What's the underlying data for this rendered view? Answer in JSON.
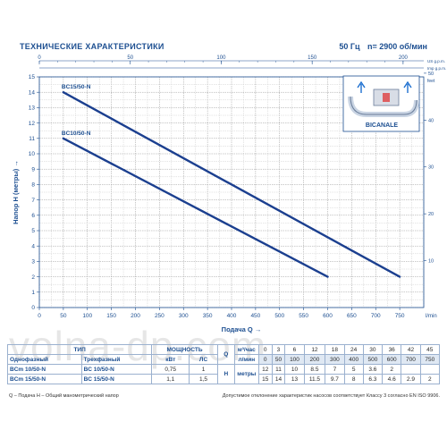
{
  "header": {
    "title": "ТЕХНИЧЕСКИЕ ХАРАКТЕРИСТИКИ",
    "freq": "50 Гц",
    "speed": "n= 2900 об/мин"
  },
  "inset": {
    "label": "BICANALE"
  },
  "watermark": "volna-dp.com",
  "chart_data": {
    "type": "line",
    "xlabel": "Подача Q",
    "xunit": "l/min",
    "ylabel": "Напор H (метры)",
    "yunit_right": "feet",
    "top_axis_unit": "US g.p.m.",
    "top_axis_unit2": "Imp g.p.m.",
    "xlim": [
      0,
      800
    ],
    "ylim": [
      0,
      15
    ],
    "x_ticks": [
      0,
      50,
      100,
      150,
      200,
      250,
      300,
      350,
      400,
      450,
      500,
      550,
      600,
      650,
      700,
      750
    ],
    "y_ticks": [
      0,
      1,
      2,
      3,
      4,
      5,
      6,
      7,
      8,
      9,
      10,
      11,
      12,
      13,
      14,
      15
    ],
    "top_ticks": [
      0,
      50,
      100,
      150,
      200
    ],
    "right_ticks": [
      10,
      20,
      30,
      40,
      50
    ],
    "grid": true,
    "series": [
      {
        "name": "BC15/50-N",
        "x": [
          50,
          750
        ],
        "y": [
          14,
          2
        ]
      },
      {
        "name": "BC10/50-N",
        "x": [
          50,
          600
        ],
        "y": [
          11,
          2
        ]
      }
    ]
  },
  "table": {
    "header": {
      "type": "ТИП",
      "power": "МОЩНОСТЬ",
      "q": "Q",
      "single": "Однофазный",
      "three": "Трехфазный",
      "kw": "кВт",
      "hp": "ЛС",
      "m3h": "м³/час",
      "lmin": "л/мин",
      "h": "H",
      "hm": "метры"
    },
    "q_m3h": [
      "0",
      "3",
      "6",
      "12",
      "18",
      "24",
      "30",
      "36",
      "42",
      "45"
    ],
    "q_lmin": [
      "0",
      "50",
      "100",
      "200",
      "300",
      "400",
      "500",
      "600",
      "700",
      "750"
    ],
    "rows": [
      {
        "single": "BCm 10/50-N",
        "three": "BC 10/50-N",
        "kw": "0,75",
        "hp": "1",
        "h": [
          "12",
          "11",
          "10",
          "8.5",
          "7",
          "5",
          "3.6",
          "2",
          "",
          ""
        ]
      },
      {
        "single": "BCm 15/50-N",
        "three": "BC 15/50-N",
        "kw": "1,1",
        "hp": "1,5",
        "h": [
          "15",
          "14",
          "13",
          "11.5",
          "9.7",
          "8",
          "6.3",
          "4.6",
          "2.9",
          "2"
        ]
      }
    ]
  },
  "footer": {
    "left": "Q – Подача  H – Общий манометрический напор",
    "right": "Допустимое отклонение характеристик насосов соответствует Классу 3 согласно EN ISO 9906."
  }
}
